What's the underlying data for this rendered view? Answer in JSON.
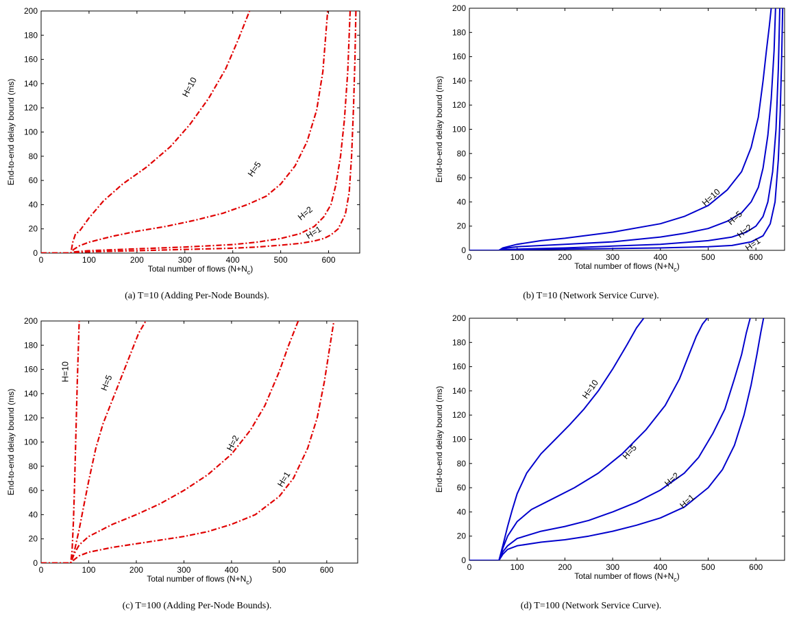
{
  "chart_data": [
    {
      "type": "line",
      "caption": "(a) T=10 (Adding Per-Node Bounds).",
      "xlabel": "Total number of flows (N+N",
      "xlabel_sub": "c",
      "xlabel_end": ")",
      "ylabel": "End-to-end delay bound (ms)",
      "xlim": [
        0,
        665
      ],
      "ylim": [
        0,
        200
      ],
      "xticks": [
        0,
        100,
        200,
        300,
        400,
        500,
        600
      ],
      "yticks": [
        0,
        20,
        40,
        60,
        80,
        100,
        120,
        140,
        160,
        180,
        200
      ],
      "line_style": "dashdot",
      "color": "#e00000",
      "series": [
        {
          "name": "H=10",
          "label_at": [
            315,
            136,
            -62
          ],
          "x": [
            0,
            62,
            66,
            72,
            80,
            100,
            130,
            170,
            220,
            270,
            310,
            350,
            385,
            410,
            435
          ],
          "y": [
            0,
            0,
            9,
            16,
            18,
            29,
            43,
            57,
            71,
            88,
            106,
            128,
            152,
            175,
            200
          ]
        },
        {
          "name": "H=5",
          "label_at": [
            450,
            68,
            -55
          ],
          "x": [
            0,
            62,
            68,
            80,
            100,
            150,
            200,
            260,
            320,
            380,
            430,
            470,
            500,
            530,
            555,
            575,
            588,
            598
          ],
          "y": [
            0,
            0,
            3,
            6,
            9,
            14,
            18,
            22,
            27,
            33,
            40,
            47,
            57,
            72,
            92,
            118,
            150,
            200
          ]
        },
        {
          "name": "H=2",
          "label_at": [
            555,
            31,
            -40
          ],
          "x": [
            0,
            62,
            70,
            100,
            200,
            300,
            400,
            450,
            500,
            540,
            570,
            590,
            605,
            615,
            625,
            633,
            640,
            645
          ],
          "y": [
            0,
            0,
            1,
            2,
            3.5,
            5,
            7,
            9,
            12,
            16,
            22,
            30,
            40,
            56,
            80,
            110,
            150,
            200
          ]
        },
        {
          "name": "H=1",
          "label_at": [
            572,
            15,
            -32
          ],
          "x": [
            0,
            62,
            70,
            100,
            200,
            300,
            400,
            450,
            500,
            540,
            570,
            590,
            605,
            620,
            635,
            643,
            648,
            652,
            655,
            657
          ],
          "y": [
            0,
            0,
            0.5,
            1,
            2,
            3,
            4,
            5,
            6.5,
            8,
            10,
            12,
            15,
            20,
            32,
            50,
            80,
            120,
            160,
            200
          ]
        }
      ]
    },
    {
      "type": "line",
      "caption": "(b) T=10 (Network Service Curve).",
      "xlabel": "Total number of flows (N+N",
      "xlabel_sub": "c",
      "xlabel_end": ")",
      "ylabel": "End-to-end delay bound (ms)",
      "xlim": [
        0,
        660
      ],
      "ylim": [
        0,
        200
      ],
      "xticks": [
        0,
        100,
        200,
        300,
        400,
        500,
        600
      ],
      "yticks": [
        0,
        20,
        40,
        60,
        80,
        100,
        120,
        140,
        160,
        180,
        200
      ],
      "line_style": "solid",
      "color": "#0000cc",
      "series": [
        {
          "name": "H=10",
          "label_at": [
            510,
            42,
            -42
          ],
          "x": [
            0,
            62,
            70,
            80,
            100,
            150,
            200,
            300,
            400,
            450,
            500,
            540,
            570,
            590,
            605,
            615,
            622,
            628,
            632
          ],
          "y": [
            0,
            0,
            2,
            3,
            5,
            8,
            10,
            15,
            22,
            28,
            37,
            50,
            65,
            85,
            110,
            140,
            165,
            185,
            200
          ]
        },
        {
          "name": "H=5",
          "label_at": [
            560,
            25,
            -42
          ],
          "x": [
            0,
            62,
            70,
            80,
            100,
            200,
            300,
            400,
            450,
            500,
            540,
            570,
            590,
            605,
            615,
            625,
            632,
            638,
            641
          ],
          "y": [
            0,
            0,
            1,
            2,
            3,
            5,
            7,
            11,
            14,
            18,
            24,
            31,
            40,
            52,
            68,
            95,
            125,
            165,
            200
          ]
        },
        {
          "name": "H=2",
          "label_at": [
            580,
            14,
            -38
          ],
          "x": [
            0,
            62,
            70,
            100,
            200,
            300,
            400,
            500,
            550,
            580,
            600,
            615,
            625,
            635,
            642,
            647,
            650
          ],
          "y": [
            0,
            0,
            0.5,
            1,
            2,
            3.5,
            5,
            8,
            11,
            15,
            20,
            28,
            40,
            65,
            100,
            150,
            200
          ]
        },
        {
          "name": "H=1",
          "label_at": [
            597,
            3,
            -35
          ],
          "x": [
            0,
            62,
            70,
            100,
            200,
            300,
            400,
            500,
            550,
            590,
            615,
            630,
            640,
            647,
            651,
            654,
            656
          ],
          "y": [
            0,
            0,
            0.2,
            0.5,
            1,
            1.5,
            2,
            3,
            4,
            7,
            12,
            22,
            40,
            75,
            115,
            160,
            200
          ]
        }
      ]
    },
    {
      "type": "line",
      "caption": "(c) T=100 (Adding Per-Node Bounds).",
      "xlabel": "Total number of flows (N+N",
      "xlabel_sub": "c",
      "xlabel_end": ")",
      "ylabel": "End-to-end delay bound (ms)",
      "xlim": [
        0,
        665
      ],
      "ylim": [
        0,
        200
      ],
      "xticks": [
        0,
        100,
        200,
        300,
        400,
        500,
        600
      ],
      "yticks": [
        0,
        20,
        40,
        60,
        80,
        100,
        120,
        140,
        160,
        180,
        200
      ],
      "line_style": "dashdot",
      "color": "#e00000",
      "series": [
        {
          "name": "H=10",
          "label_at": [
            57,
            158,
            -90
          ],
          "x": [
            0,
            62,
            65,
            68,
            70,
            72,
            74,
            76,
            78,
            80
          ],
          "y": [
            0,
            0,
            10,
            35,
            60,
            90,
            120,
            150,
            175,
            200
          ]
        },
        {
          "name": "H=5",
          "label_at": [
            143,
            148,
            -68
          ],
          "x": [
            0,
            62,
            70,
            80,
            90,
            100,
            115,
            130,
            150,
            170,
            190,
            205,
            220
          ],
          "y": [
            0,
            0,
            10,
            28,
            48,
            68,
            95,
            115,
            135,
            155,
            175,
            190,
            200
          ]
        },
        {
          "name": "H=2",
          "label_at": [
            408,
            98,
            -62
          ],
          "x": [
            0,
            62,
            70,
            80,
            100,
            150,
            200,
            250,
            300,
            350,
            400,
            440,
            470,
            500,
            520,
            540
          ],
          "y": [
            0,
            0,
            8,
            15,
            22,
            32,
            40,
            49,
            60,
            73,
            90,
            110,
            130,
            158,
            180,
            200
          ]
        },
        {
          "name": "H=1",
          "label_at": [
            515,
            68,
            -58
          ],
          "x": [
            0,
            62,
            70,
            80,
            100,
            150,
            200,
            250,
            300,
            350,
            400,
            450,
            500,
            530,
            560,
            580,
            595,
            605,
            615
          ],
          "y": [
            0,
            0,
            3,
            6,
            9,
            13,
            16,
            19,
            22,
            26,
            32,
            40,
            55,
            70,
            95,
            120,
            150,
            175,
            200
          ]
        }
      ]
    },
    {
      "type": "line",
      "caption": "(d) T=100 (Network Service Curve).",
      "xlabel": "Total number of flows (N+N",
      "xlabel_sub": "c",
      "xlabel_end": ")",
      "ylabel": "End-to-end delay bound (ms)",
      "xlim": [
        0,
        660
      ],
      "ylim": [
        0,
        200
      ],
      "xticks": [
        0,
        100,
        200,
        300,
        400,
        500,
        600
      ],
      "yticks": [
        0,
        20,
        40,
        60,
        80,
        100,
        120,
        140,
        160,
        180,
        200
      ],
      "line_style": "solid",
      "color": "#0000cc",
      "series": [
        {
          "name": "H=10",
          "label_at": [
            258,
            140,
            -55
          ],
          "x": [
            0,
            62,
            70,
            80,
            90,
            100,
            120,
            150,
            180,
            210,
            240,
            270,
            300,
            330,
            350,
            365
          ],
          "y": [
            0,
            0,
            12,
            28,
            42,
            55,
            72,
            88,
            100,
            112,
            125,
            140,
            158,
            178,
            192,
            200
          ]
        },
        {
          "name": "H=5",
          "label_at": [
            340,
            88,
            -48
          ],
          "x": [
            0,
            62,
            70,
            80,
            100,
            130,
            170,
            220,
            270,
            320,
            370,
            410,
            440,
            460,
            475,
            488,
            498
          ],
          "y": [
            0,
            0,
            10,
            20,
            32,
            42,
            50,
            60,
            72,
            88,
            108,
            128,
            150,
            170,
            185,
            195,
            200
          ]
        },
        {
          "name": "H=2",
          "label_at": [
            428,
            65,
            -42
          ],
          "x": [
            0,
            62,
            70,
            80,
            100,
            150,
            200,
            250,
            300,
            350,
            400,
            450,
            480,
            510,
            535,
            555,
            570,
            580,
            588
          ],
          "y": [
            0,
            0,
            7,
            12,
            18,
            24,
            28,
            33,
            40,
            48,
            58,
            72,
            85,
            105,
            125,
            150,
            170,
            188,
            200
          ]
        },
        {
          "name": "H=1",
          "label_at": [
            460,
            47,
            -42
          ],
          "x": [
            0,
            62,
            70,
            80,
            100,
            150,
            200,
            250,
            300,
            350,
            400,
            450,
            500,
            530,
            555,
            575,
            590,
            602,
            610,
            616
          ],
          "y": [
            0,
            0,
            5,
            9,
            12,
            15,
            17,
            20,
            24,
            29,
            35,
            44,
            60,
            75,
            95,
            120,
            145,
            170,
            188,
            200
          ]
        }
      ]
    }
  ]
}
